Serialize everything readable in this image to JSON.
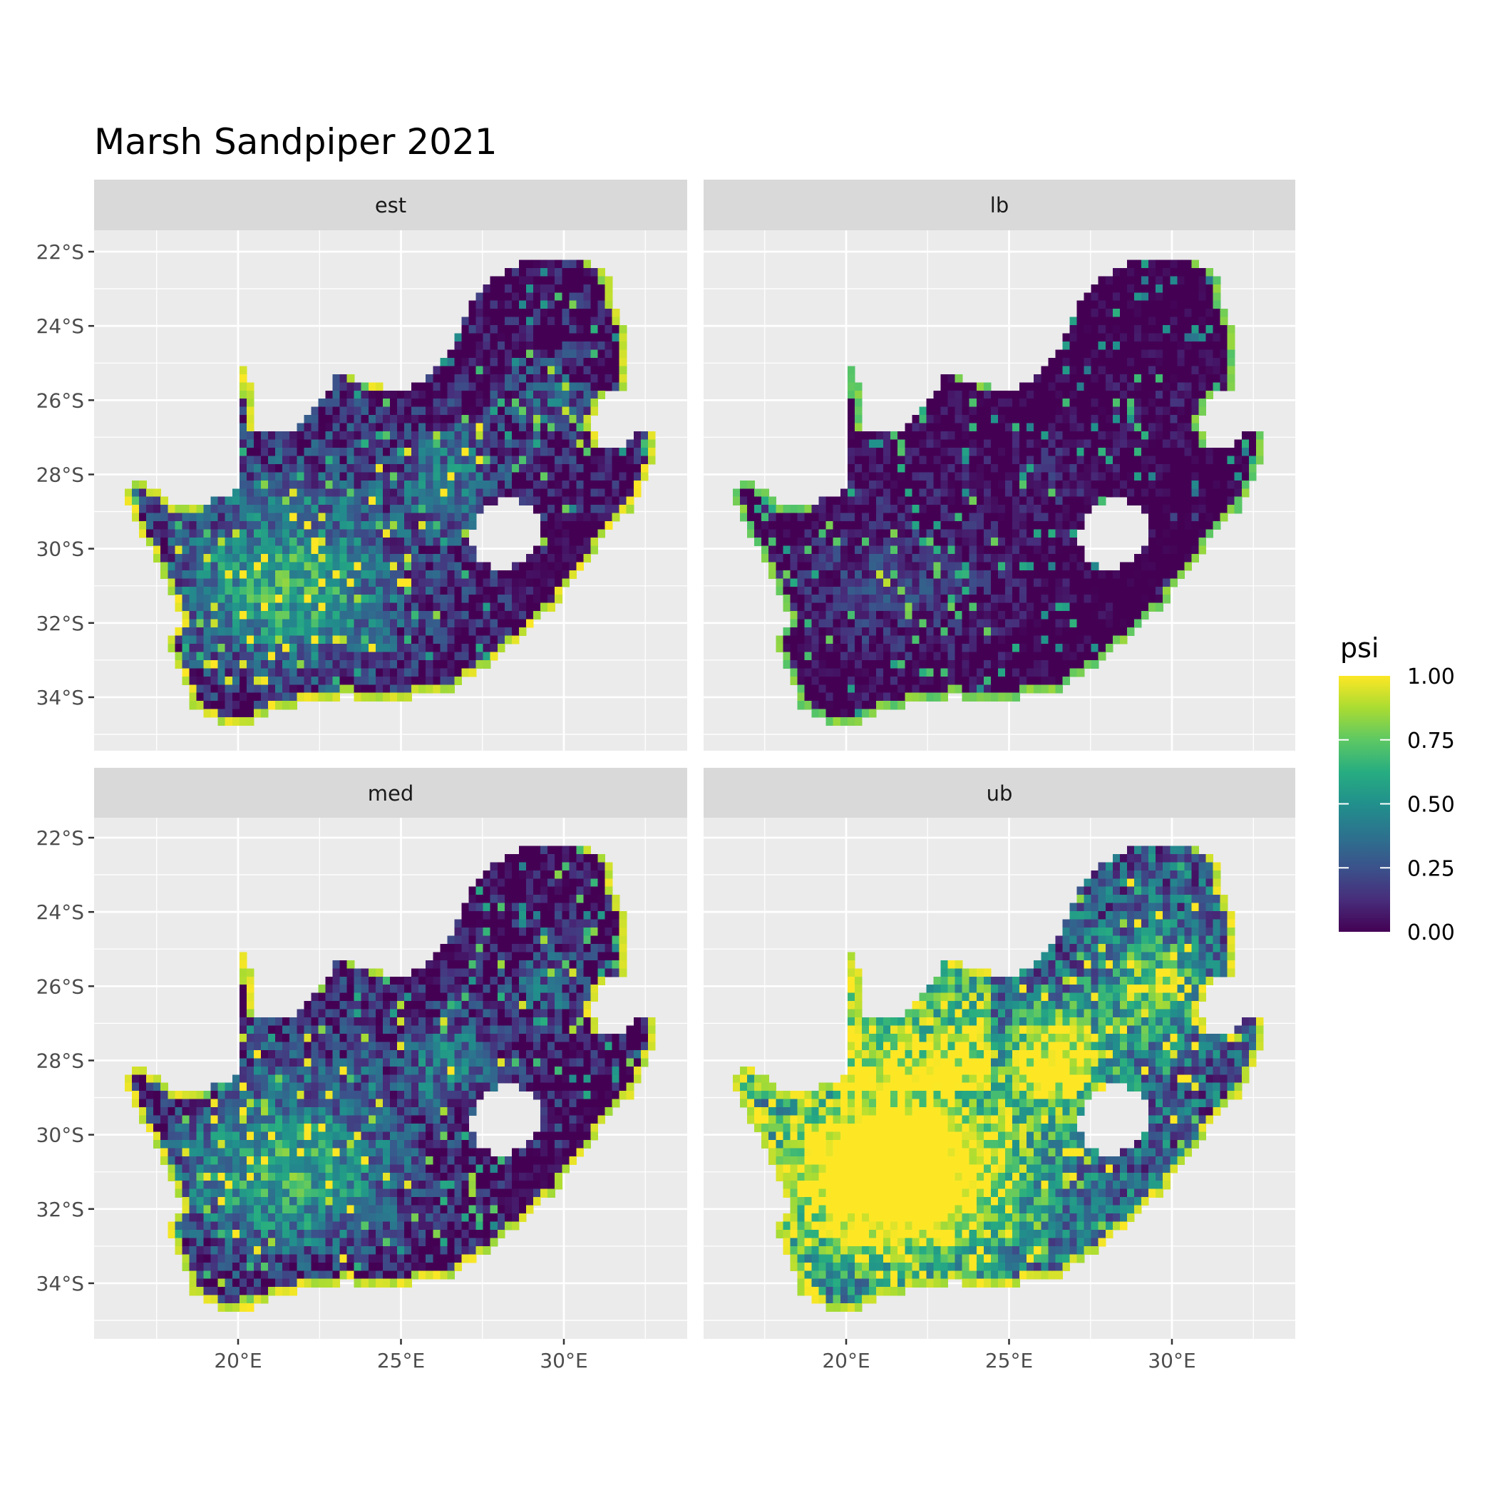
{
  "chart_data": {
    "type": "heatmap",
    "title": "Marsh Sandpiper 2021",
    "facets": [
      "est",
      "lb",
      "med",
      "ub"
    ],
    "x_ticks": [
      "20°E",
      "25°E",
      "30°E"
    ],
    "x_tick_values": [
      20,
      25,
      30
    ],
    "y_ticks": [
      "22°S",
      "24°S",
      "26°S",
      "28°S",
      "30°S",
      "32°S",
      "34°S"
    ],
    "y_tick_values": [
      -22,
      -24,
      -26,
      -28,
      -30,
      -32,
      -34
    ],
    "xlim": [
      15.6,
      33.8
    ],
    "ylim": [
      -35.4,
      -21.4
    ],
    "grid": true,
    "legend": {
      "title": "psi",
      "position": "right",
      "colormap": "viridis",
      "range": [
        0,
        1
      ],
      "labels": [
        "1.00",
        "0.75",
        "0.50",
        "0.25",
        "0.00"
      ],
      "label_values": [
        1.0,
        0.75,
        0.5,
        0.25,
        0.0
      ]
    },
    "colors": {
      "panel_background": "#EBEBEB",
      "strip_background": "#D9D9D9",
      "grid": "#FFFFFF",
      "viridis": [
        "#440154",
        "#3B528B",
        "#21908C",
        "#5DC863",
        "#FDE725"
      ]
    }
  }
}
